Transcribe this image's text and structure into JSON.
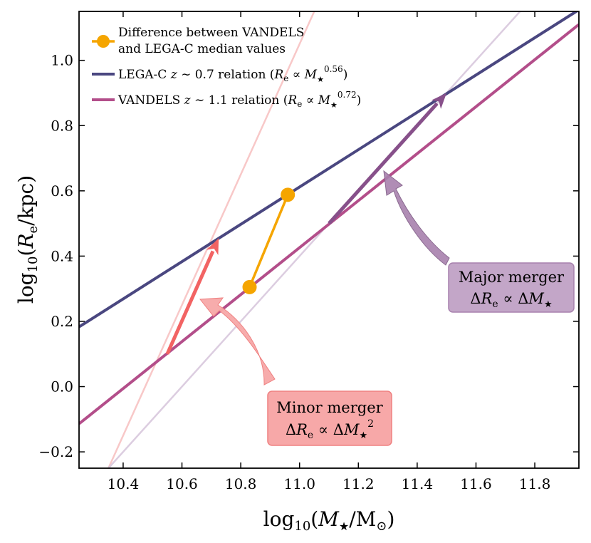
{
  "chart_data": {
    "type": "line",
    "title": "",
    "xlabel": "log10(M★/M⊙)",
    "ylabel": "log10(Re/kpc)",
    "xlabel_parts": {
      "fn": "log",
      "sub": "10",
      "open": "(",
      "var": "M",
      "star": "★",
      "slash": "/M",
      "sun": "⊙",
      "close": ")"
    },
    "ylabel_parts": {
      "fn": "log",
      "sub": "10",
      "open": "(",
      "var": "R",
      "e": "e",
      "rest": "/kpc)"
    },
    "xlim": [
      10.25,
      11.95
    ],
    "ylim": [
      -0.25,
      1.15
    ],
    "grid": false,
    "legend_position": "top-left",
    "xticks": [
      10.4,
      10.6,
      10.8,
      11.0,
      11.2,
      11.4,
      11.6,
      11.8
    ],
    "xtick_labels": [
      "10.4",
      "10.6",
      "10.8",
      "11.0",
      "11.2",
      "11.4",
      "11.6",
      "11.8"
    ],
    "yticks": [
      -0.2,
      0.0,
      0.2,
      0.4,
      0.6,
      0.8,
      1.0
    ],
    "ytick_labels": [
      "−0.2",
      "0.0",
      "0.2",
      "0.4",
      "0.6",
      "0.8",
      "1.0"
    ],
    "series": [
      {
        "name": "LEGA-C z ~ 0.7 relation",
        "kind": "line",
        "color": "#4a4780",
        "x": [
          10.25,
          11.95
        ],
        "y": [
          0.183,
          1.155
        ]
      },
      {
        "name": "VANDELS z ~ 1.1 relation",
        "kind": "line",
        "color": "#b34e8a",
        "x": [
          10.25,
          11.95
        ],
        "y": [
          -0.114,
          1.11
        ]
      },
      {
        "name": "Minor merger track",
        "kind": "faint-line",
        "color": "#f8c8c8",
        "x": [
          10.35,
          11.05
        ],
        "y": [
          -0.25,
          1.15
        ]
      },
      {
        "name": "Major merger track",
        "kind": "faint-line",
        "color": "#dccde0",
        "x": [
          10.35,
          11.75
        ],
        "y": [
          -0.25,
          1.15
        ]
      },
      {
        "name": "Difference between VANDELS and LEGA-C median values",
        "kind": "points",
        "color": "#f5a500",
        "x": [
          10.83,
          10.96
        ],
        "y": [
          0.305,
          0.588
        ]
      }
    ],
    "arrows": [
      {
        "name": "minor-merger-arrow",
        "color": "#f26363",
        "x": [
          10.55,
          10.725
        ],
        "y": [
          0.1,
          0.455
        ]
      },
      {
        "name": "major-merger-arrow",
        "color": "#87508a",
        "x": [
          11.1,
          11.5
        ],
        "y": [
          0.5,
          0.9
        ]
      }
    ],
    "legend": {
      "entry1_line1": "Difference between VANDELS",
      "entry1_line2": "and LEGA-C median values",
      "entry2_prefix": "LEGA-C ",
      "entry2_z": "z",
      "entry2_mid": " ∼ 0.7 relation (",
      "entry2_R": "R",
      "entry2_e": "e",
      "entry2_prop": " ∝ ",
      "entry2_M": "M",
      "entry2_star": "★",
      "entry2_exp": "0.56",
      "entry2_close": ")",
      "entry3_prefix": "VANDELS ",
      "entry3_z": "z",
      "entry3_mid": " ∼ 1.1 relation (",
      "entry3_R": "R",
      "entry3_e": "e",
      "entry3_prop": " ∝ ",
      "entry3_M": "M",
      "entry3_star": "★",
      "entry3_exp": "0.72",
      "entry3_close": ")"
    },
    "annotations": {
      "minor": {
        "title": "Minor merger",
        "delta": "Δ",
        "R": "R",
        "e": "e",
        "prop": " ∝ Δ",
        "M": "M",
        "star": "★",
        "exp": "2",
        "box_color": "#f7a8a8",
        "box_edge": "#ef8080"
      },
      "major": {
        "title": "Major merger",
        "delta": "Δ",
        "R": "R",
        "e": "e",
        "prop": " ∝ Δ",
        "M": "M",
        "star": "★",
        "box_color": "#c3a6c8",
        "box_edge": "#a781ad"
      }
    }
  }
}
